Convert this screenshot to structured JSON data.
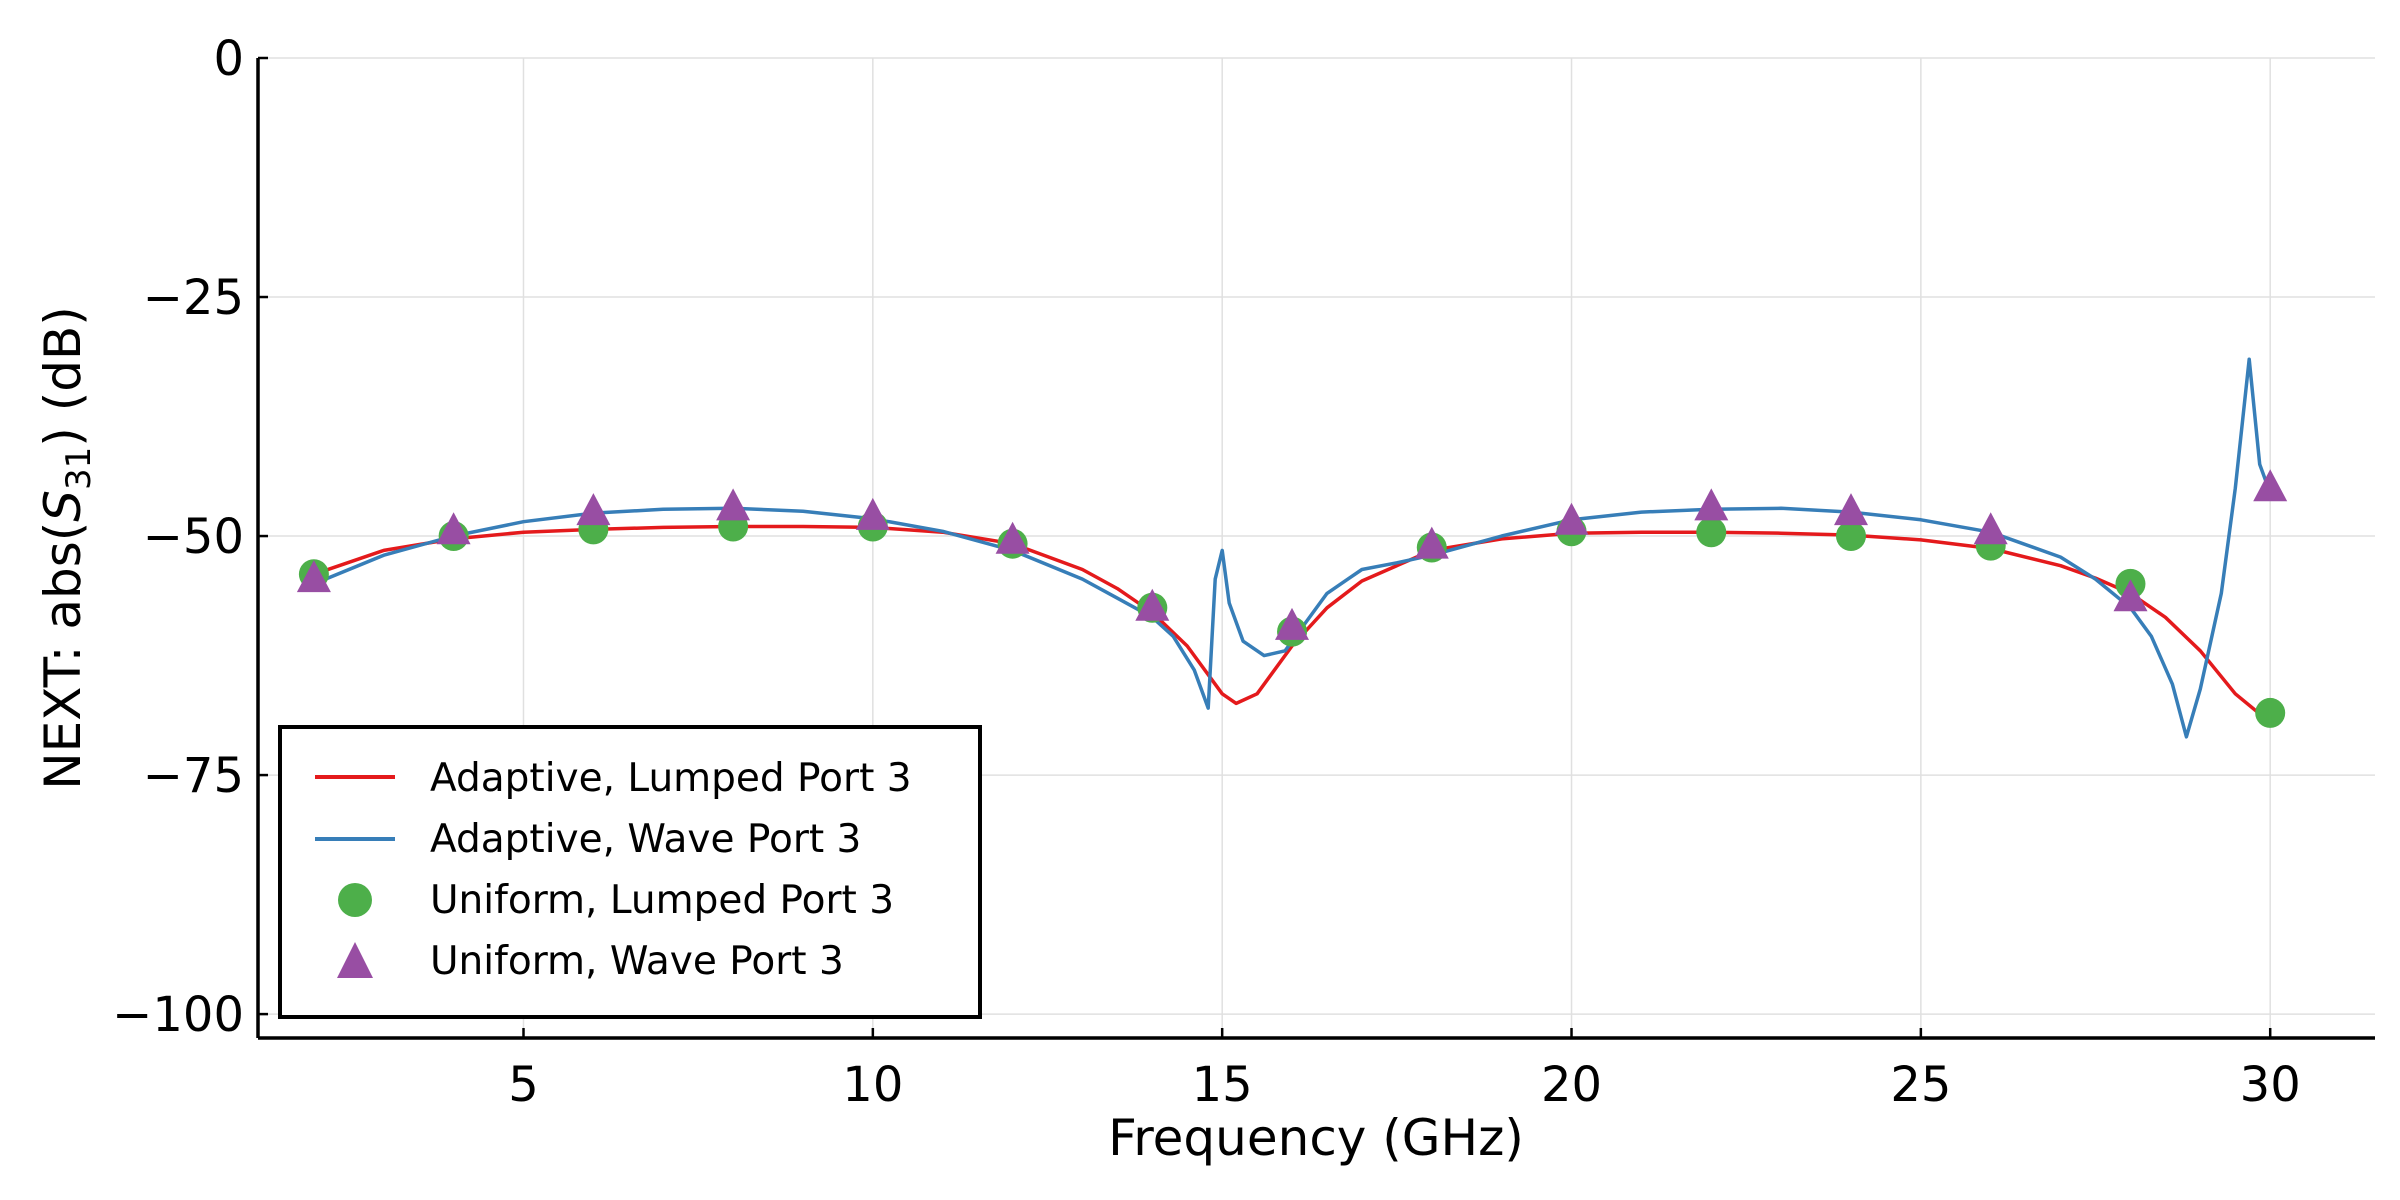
{
  "chart_data": {
    "type": "line",
    "xlabel": "Frequency  (GHz)",
    "ylabel_prefix": "NEXT: abs(",
    "ylabel_var": "S",
    "ylabel_sub": "31",
    "ylabel_suffix": ")  (dB)",
    "xlim": [
      1.2,
      31.5
    ],
    "ylim": [
      -102.5,
      0
    ],
    "x_ticks": [
      5,
      10,
      15,
      20,
      25,
      30
    ],
    "x_tick_labels": [
      "5",
      "10",
      "15",
      "20",
      "25",
      "30"
    ],
    "y_ticks": [
      0,
      -25,
      -50,
      -75,
      -100
    ],
    "y_tick_labels": [
      "0",
      "−25",
      "−50",
      "−75",
      "−100"
    ],
    "grid": true,
    "legend_position": "lower-left",
    "series": [
      {
        "name": "Adaptive, Lumped Port 3",
        "kind": "line",
        "color": "#e41a1c",
        "x": [
          2,
          3,
          4,
          5,
          6,
          7,
          8,
          9,
          10,
          11,
          12,
          13,
          13.5,
          14,
          14.5,
          15,
          15.2,
          15.5,
          16,
          16.5,
          17,
          18,
          19,
          20,
          21,
          22,
          23,
          24,
          25,
          26,
          27,
          27.5,
          28,
          28.5,
          29,
          29.5,
          30
        ],
        "y": [
          -54,
          -51.5,
          -50.3,
          -49.6,
          -49.3,
          -49.1,
          -49.0,
          -49.0,
          -49.1,
          -49.6,
          -50.8,
          -53.5,
          -55.5,
          -58.0,
          -61.5,
          -66.5,
          -67.5,
          -66.5,
          -61.5,
          -57.5,
          -54.7,
          -51.5,
          -50.3,
          -49.7,
          -49.6,
          -49.6,
          -49.7,
          -49.9,
          -50.4,
          -51.3,
          -53.1,
          -54.4,
          -56.0,
          -58.5,
          -62.0,
          -66.5,
          -69.5
        ]
      },
      {
        "name": "Adaptive, Wave Port 3",
        "kind": "line",
        "color": "#377eb8",
        "x": [
          2,
          3,
          4,
          5,
          6,
          7,
          8,
          9,
          10,
          11,
          12,
          13,
          13.5,
          14,
          14.3,
          14.6,
          14.8,
          14.9,
          15.0,
          15.1,
          15.3,
          15.6,
          15.9,
          16.2,
          16.5,
          16.8,
          17,
          17.5,
          18,
          19,
          20,
          21,
          22,
          23,
          24,
          25,
          26,
          27,
          27.5,
          28,
          28.3,
          28.6,
          28.8,
          29.0,
          29.3,
          29.5,
          29.7,
          29.85,
          30
        ],
        "y": [
          -55,
          -52,
          -50,
          -48.5,
          -47.6,
          -47.2,
          -47.1,
          -47.4,
          -48.2,
          -49.5,
          -51.5,
          -54.5,
          -56.5,
          -58.5,
          -60.5,
          -64,
          -68,
          -54.5,
          -51.5,
          -57,
          -61,
          -62.5,
          -62,
          -59,
          -56,
          -54.5,
          -53.5,
          -52.8,
          -52,
          -50,
          -48.3,
          -47.5,
          -47.2,
          -47.1,
          -47.5,
          -48.3,
          -49.6,
          -52.2,
          -54.5,
          -57.5,
          -60.5,
          -65.5,
          -71,
          -66,
          -56,
          -45,
          -31.5,
          -42.5,
          -45.5
        ]
      },
      {
        "name": "Uniform, Lumped Port 3",
        "kind": "marker",
        "marker": "circle",
        "color": "#4daf4a",
        "x": [
          2,
          4,
          6,
          8,
          10,
          12,
          14,
          16,
          18,
          20,
          22,
          24,
          26,
          28,
          30
        ],
        "y": [
          -54,
          -50,
          -49.3,
          -49.0,
          -49.0,
          -50.8,
          -57.5,
          -60,
          -51.2,
          -49.5,
          -49.6,
          -50,
          -51,
          -55,
          -68.5
        ]
      },
      {
        "name": "Uniform, Wave Port 3",
        "kind": "marker",
        "marker": "triangle",
        "color": "#984ea3",
        "x": [
          2,
          4,
          6,
          8,
          10,
          12,
          14,
          16,
          18,
          20,
          22,
          24,
          26,
          28,
          30
        ],
        "y": [
          -54.5,
          -49.5,
          -47.5,
          -47,
          -48,
          -50.5,
          -57.5,
          -59.5,
          -51,
          -48.5,
          -47,
          -47.5,
          -49.5,
          -56.5,
          -45
        ]
      }
    ]
  }
}
